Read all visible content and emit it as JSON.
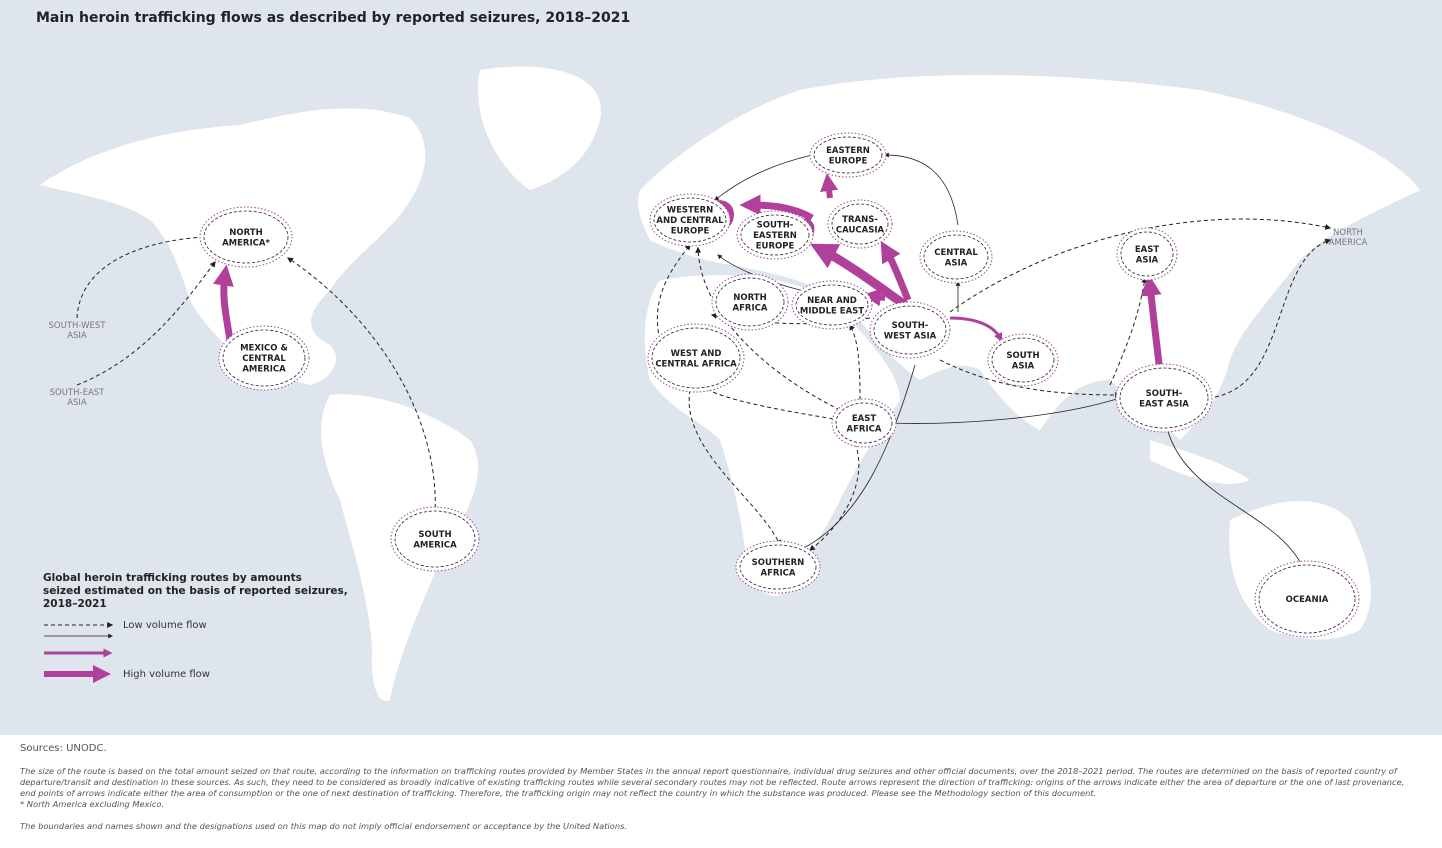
{
  "title": "Main heroin trafficking flows as described by reported seizures, 2018–2021",
  "regions": [
    {
      "lines": [
        "EASTERN",
        "EUROPE"
      ]
    },
    {
      "lines": [
        "WESTERN",
        "AND CENTRAL",
        "EUROPE"
      ]
    },
    {
      "lines": [
        "SOUTH-",
        "EASTERN",
        "EUROPE"
      ]
    },
    {
      "lines": [
        "TRANS-",
        "CAUCASIA"
      ]
    },
    {
      "lines": [
        "CENTRAL",
        "ASIA"
      ]
    },
    {
      "lines": [
        "EAST",
        "ASIA"
      ]
    },
    {
      "lines": [
        "NORTH",
        "AMERICA*"
      ]
    },
    {
      "lines": [
        "MEXICO &",
        "CENTRAL",
        "AMERICA"
      ]
    },
    {
      "lines": [
        "NORTH",
        "AFRICA"
      ]
    },
    {
      "lines": [
        "NEAR AND",
        "MIDDLE EAST"
      ]
    },
    {
      "lines": [
        "SOUTH-",
        "WEST ASIA"
      ]
    },
    {
      "lines": [
        "SOUTH",
        "ASIA"
      ]
    },
    {
      "lines": [
        "WEST AND",
        "CENTRAL AFRICA"
      ]
    },
    {
      "lines": [
        "SOUTH-",
        "EAST ASIA"
      ]
    },
    {
      "lines": [
        "EAST",
        "AFRICA"
      ]
    },
    {
      "lines": [
        "SOUTH",
        "AMERICA"
      ]
    },
    {
      "lines": [
        "SOUTHERN",
        "AFRICA"
      ]
    },
    {
      "lines": [
        "OCEANIA"
      ]
    }
  ],
  "outside_labels": [
    {
      "lines": [
        "SOUTH-WEST",
        "ASIA"
      ]
    },
    {
      "lines": [
        "SOUTH-EAST",
        "ASIA"
      ]
    },
    {
      "lines": [
        "NORTH",
        "AMERICA"
      ]
    }
  ],
  "legend": {
    "title_lines": [
      "Global heroin trafficking routes by amounts",
      "seized estimated on the basis of reported seizures,",
      "2018–2021"
    ],
    "low": "Low volume flow",
    "high": "High volume flow"
  },
  "footer": {
    "sources": "Sources: UNODC.",
    "note": "The size of the route is based on the total amount seized on that route, according to the information on trafficking routes provided by Member States in the annual report questionnaire, individual drug seizures and other official documents, over the 2018–2021 period. The routes are determined on the basis of reported country of departure/transit and destination in these sources. As such, they need to be considered as broadly indicative of existing trafficking routes while several secondary routes may not be reflected. Route arrows represent the direction of trafficking: origins of the arrows indicate either the area of departure or the one of last provenance, end points of arrows indicate either the area of consumption or the one of next destination of trafficking. Therefore, the trafficking origin may not reflect the country in which the substance was produced. Please see the Methodology section of this document.",
    "footnote": "* North America excluding Mexico.",
    "disclaimer": "The boundaries and names shown and the designations used on this map do not imply official endorsement or acceptance by the United Nations."
  }
}
